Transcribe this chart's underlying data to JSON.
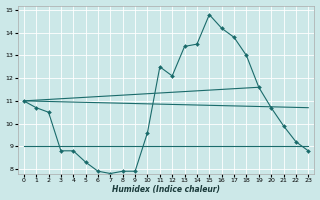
{
  "xlabel": "Humidex (Indice chaleur)",
  "bg_color": "#cce8e8",
  "grid_color": "#ffffff",
  "line_color": "#1a6b6b",
  "xlim": [
    -0.5,
    23.5
  ],
  "ylim": [
    7.8,
    15.2
  ],
  "yticks": [
    8,
    9,
    10,
    11,
    12,
    13,
    14,
    15
  ],
  "xticks": [
    0,
    1,
    2,
    3,
    4,
    5,
    6,
    7,
    8,
    9,
    10,
    11,
    12,
    13,
    14,
    15,
    16,
    17,
    18,
    19,
    20,
    21,
    22,
    23
  ],
  "line1_x": [
    0,
    1,
    2,
    3,
    4,
    5,
    6,
    7,
    8,
    9,
    10,
    11,
    12,
    13,
    14,
    15,
    16,
    17,
    18,
    19,
    20,
    21,
    22,
    23
  ],
  "line1_y": [
    11.0,
    10.7,
    10.5,
    8.8,
    8.8,
    8.3,
    7.9,
    7.8,
    7.9,
    7.9,
    9.6,
    12.5,
    12.1,
    13.4,
    13.5,
    14.8,
    14.2,
    13.8,
    13.0,
    11.6,
    10.7,
    9.9,
    9.2,
    8.8
  ],
  "line2_x": [
    0,
    23
  ],
  "line2_y": [
    11.0,
    10.7
  ],
  "line3_x": [
    0,
    23
  ],
  "line3_y": [
    9.0,
    9.0
  ],
  "line4_x": [
    0,
    19
  ],
  "line4_y": [
    11.0,
    11.6
  ]
}
